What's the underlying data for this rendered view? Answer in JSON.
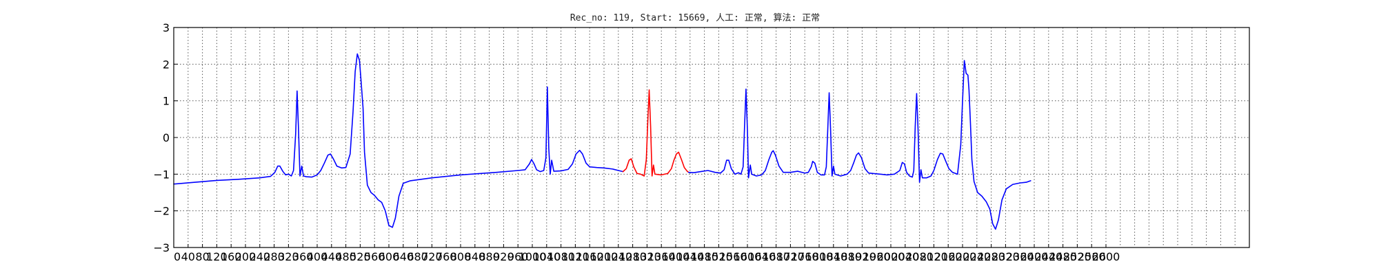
{
  "chart_data": {
    "type": "line",
    "title": "Rec_no: 119, Start: 15669, 人工: 正常, 算法: 正常",
    "xlabel": "",
    "ylabel": "",
    "xlim": [
      0,
      3000
    ],
    "ylim": [
      -3,
      3
    ],
    "x_tick_step": 40,
    "x_tick_labels_until": 2600,
    "y_ticks": [
      -3,
      -2,
      -1,
      0,
      1,
      2,
      3
    ],
    "grid": true,
    "series": [
      {
        "color": "#0000ff",
        "points": [
          [
            0,
            -1.27
          ],
          [
            60,
            -1.22
          ],
          [
            120,
            -1.17
          ],
          [
            180,
            -1.14
          ],
          [
            240,
            -1.1
          ],
          [
            270,
            -1.06
          ],
          [
            282,
            -0.95
          ],
          [
            290,
            -0.78
          ],
          [
            296,
            -0.78
          ],
          [
            304,
            -0.92
          ],
          [
            312,
            -1.02
          ],
          [
            320,
            -1.0
          ],
          [
            328,
            -1.05
          ],
          [
            334,
            -0.9
          ],
          [
            340,
            0.1
          ],
          [
            344,
            1.27
          ],
          [
            348,
            0.2
          ],
          [
            352,
            -1.05
          ],
          [
            357,
            -0.78
          ],
          [
            362,
            -1.05
          ],
          [
            370,
            -1.07
          ],
          [
            385,
            -1.08
          ],
          [
            400,
            -1.02
          ],
          [
            410,
            -0.9
          ],
          [
            420,
            -0.7
          ],
          [
            430,
            -0.48
          ],
          [
            437,
            -0.45
          ],
          [
            445,
            -0.58
          ],
          [
            455,
            -0.78
          ],
          [
            468,
            -0.83
          ],
          [
            480,
            -0.82
          ],
          [
            492,
            -0.45
          ],
          [
            500,
            0.7
          ],
          [
            506,
            1.8
          ],
          [
            512,
            2.28
          ],
          [
            518,
            2.1
          ],
          [
            522,
            1.6
          ],
          [
            528,
            0.8
          ],
          [
            532,
            -0.4
          ],
          [
            540,
            -1.3
          ],
          [
            550,
            -1.5
          ],
          [
            560,
            -1.58
          ],
          [
            570,
            -1.7
          ],
          [
            580,
            -1.77
          ],
          [
            590,
            -2.0
          ],
          [
            600,
            -2.4
          ],
          [
            610,
            -2.45
          ],
          [
            618,
            -2.2
          ],
          [
            628,
            -1.6
          ],
          [
            640,
            -1.25
          ],
          [
            660,
            -1.18
          ],
          [
            720,
            -1.1
          ],
          [
            800,
            -1.02
          ],
          [
            900,
            -0.95
          ],
          [
            960,
            -0.9
          ],
          [
            980,
            -0.88
          ],
          [
            992,
            -0.72
          ],
          [
            998,
            -0.6
          ],
          [
            1005,
            -0.72
          ],
          [
            1012,
            -0.88
          ],
          [
            1022,
            -0.93
          ],
          [
            1032,
            -0.9
          ],
          [
            1038,
            -0.55
          ],
          [
            1042,
            1.38
          ],
          [
            1046,
            -0.3
          ],
          [
            1050,
            -1.0
          ],
          [
            1054,
            -0.62
          ],
          [
            1060,
            -0.92
          ],
          [
            1080,
            -0.91
          ],
          [
            1100,
            -0.87
          ],
          [
            1112,
            -0.72
          ],
          [
            1122,
            -0.45
          ],
          [
            1132,
            -0.35
          ],
          [
            1140,
            -0.45
          ],
          [
            1150,
            -0.7
          ],
          [
            1160,
            -0.8
          ],
          [
            1180,
            -0.82
          ],
          [
            1200,
            -0.83
          ],
          [
            1224,
            -0.86
          ],
          [
            1240,
            -0.9
          ],
          [
            1253,
            -0.93
          ]
        ]
      },
      {
        "color": "#ff0000",
        "points": [
          [
            1253,
            -0.93
          ],
          [
            1262,
            -0.85
          ],
          [
            1270,
            -0.62
          ],
          [
            1276,
            -0.58
          ],
          [
            1283,
            -0.8
          ],
          [
            1292,
            -0.98
          ],
          [
            1302,
            -1.0
          ],
          [
            1312,
            -1.05
          ],
          [
            1318,
            -0.6
          ],
          [
            1322,
            0.4
          ],
          [
            1326,
            1.3
          ],
          [
            1330,
            0.3
          ],
          [
            1334,
            -1.05
          ],
          [
            1338,
            -0.75
          ],
          [
            1342,
            -1.0
          ],
          [
            1360,
            -1.02
          ],
          [
            1378,
            -0.98
          ],
          [
            1388,
            -0.85
          ],
          [
            1395,
            -0.62
          ],
          [
            1402,
            -0.45
          ],
          [
            1408,
            -0.4
          ],
          [
            1416,
            -0.6
          ],
          [
            1424,
            -0.82
          ],
          [
            1432,
            -0.92
          ],
          [
            1436,
            -0.95
          ]
        ]
      },
      {
        "color": "#0000ff",
        "points": [
          [
            1436,
            -0.95
          ],
          [
            1450,
            -0.96
          ],
          [
            1470,
            -0.93
          ],
          [
            1490,
            -0.9
          ],
          [
            1510,
            -0.95
          ],
          [
            1525,
            -0.97
          ],
          [
            1535,
            -0.88
          ],
          [
            1542,
            -0.62
          ],
          [
            1548,
            -0.62
          ],
          [
            1555,
            -0.85
          ],
          [
            1565,
            -1.0
          ],
          [
            1575,
            -0.96
          ],
          [
            1582,
            -1.0
          ],
          [
            1588,
            -0.8
          ],
          [
            1592,
            0.3
          ],
          [
            1596,
            1.32
          ],
          [
            1600,
            0.2
          ],
          [
            1603,
            -1.1
          ],
          [
            1608,
            -0.75
          ],
          [
            1612,
            -1.0
          ],
          [
            1625,
            -1.05
          ],
          [
            1640,
            -1.02
          ],
          [
            1650,
            -0.9
          ],
          [
            1660,
            -0.6
          ],
          [
            1668,
            -0.4
          ],
          [
            1672,
            -0.36
          ],
          [
            1678,
            -0.48
          ],
          [
            1688,
            -0.78
          ],
          [
            1700,
            -0.95
          ],
          [
            1720,
            -0.95
          ],
          [
            1740,
            -0.92
          ],
          [
            1760,
            -0.97
          ],
          [
            1770,
            -0.95
          ],
          [
            1778,
            -0.8
          ],
          [
            1782,
            -0.65
          ],
          [
            1788,
            -0.7
          ],
          [
            1795,
            -0.95
          ],
          [
            1805,
            -1.02
          ],
          [
            1815,
            -1.02
          ],
          [
            1820,
            -0.8
          ],
          [
            1824,
            0.2
          ],
          [
            1828,
            1.22
          ],
          [
            1832,
            0.2
          ],
          [
            1836,
            -1.05
          ],
          [
            1840,
            -0.78
          ],
          [
            1844,
            -1.0
          ],
          [
            1860,
            -1.05
          ],
          [
            1878,
            -1.0
          ],
          [
            1888,
            -0.9
          ],
          [
            1896,
            -0.7
          ],
          [
            1904,
            -0.48
          ],
          [
            1910,
            -0.42
          ],
          [
            1918,
            -0.55
          ],
          [
            1928,
            -0.85
          ],
          [
            1938,
            -0.97
          ],
          [
            1950,
            -0.98
          ],
          [
            1970,
            -1.0
          ],
          [
            1990,
            -1.02
          ],
          [
            2010,
            -1.0
          ],
          [
            2025,
            -0.9
          ],
          [
            2032,
            -0.68
          ],
          [
            2038,
            -0.72
          ],
          [
            2044,
            -0.95
          ],
          [
            2052,
            -1.05
          ],
          [
            2060,
            -1.08
          ],
          [
            2064,
            -0.9
          ],
          [
            2068,
            0.3
          ],
          [
            2072,
            1.2
          ],
          [
            2076,
            0.2
          ],
          [
            2080,
            -1.22
          ],
          [
            2084,
            -0.88
          ],
          [
            2088,
            -1.1
          ],
          [
            2100,
            -1.1
          ],
          [
            2112,
            -1.05
          ],
          [
            2120,
            -0.9
          ],
          [
            2130,
            -0.6
          ],
          [
            2138,
            -0.43
          ],
          [
            2145,
            -0.45
          ],
          [
            2152,
            -0.62
          ],
          [
            2162,
            -0.85
          ],
          [
            2172,
            -0.95
          ],
          [
            2186,
            -1.0
          ],
          [
            2195,
            -0.2
          ],
          [
            2200,
            1.0
          ],
          [
            2205,
            2.1
          ],
          [
            2210,
            1.75
          ],
          [
            2215,
            1.7
          ],
          [
            2218,
            1.3
          ],
          [
            2222,
            0.4
          ],
          [
            2226,
            -0.6
          ],
          [
            2232,
            -1.2
          ],
          [
            2242,
            -1.5
          ],
          [
            2254,
            -1.6
          ],
          [
            2266,
            -1.75
          ],
          [
            2276,
            -1.95
          ],
          [
            2284,
            -2.35
          ],
          [
            2292,
            -2.5
          ],
          [
            2300,
            -2.25
          ],
          [
            2310,
            -1.7
          ],
          [
            2322,
            -1.4
          ],
          [
            2340,
            -1.28
          ],
          [
            2360,
            -1.24
          ],
          [
            2378,
            -1.22
          ],
          [
            2390,
            -1.18
          ]
        ]
      }
    ]
  }
}
